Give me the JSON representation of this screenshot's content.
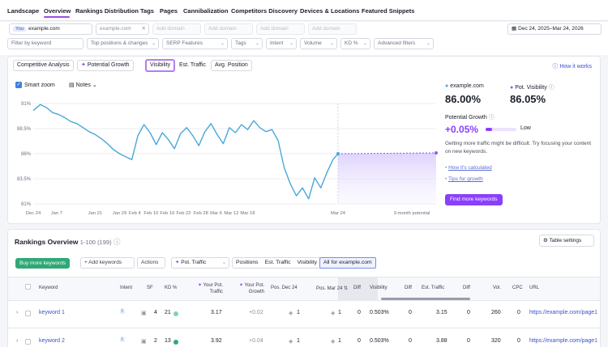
{
  "nav": {
    "items": [
      "Landscape",
      "Overview",
      "Rankings Distribution",
      "Tags",
      "Pages",
      "Cannibalization",
      "Competitors Discovery",
      "Devices & Locations",
      "Featured Snippets"
    ],
    "active": "Overview"
  },
  "domains": {
    "you_label": "You",
    "you_domain": "example.com",
    "competitor_domain": "example.com",
    "add_domain_1": "Add domain",
    "add_domain_2": "Add domain",
    "add_domain_3": "Add domain",
    "add_domain_4": "Add domain",
    "date_range": "Dec 24, 2025–Mar 24, 2026"
  },
  "filters": {
    "keyword_placeholder": "Filter by keyword",
    "items": [
      "Top positions & changes",
      "SERP Features",
      "Tags",
      "Intent",
      "Volume",
      "KD %",
      "Advanced filters"
    ]
  },
  "chart_tabs": {
    "items": [
      "Competitive Analysis",
      "Potential Growth",
      "Visibility",
      "Est. Traffic",
      "Avg. Position"
    ],
    "selected": "Visibility",
    "how_it_works": "How it works"
  },
  "controls": {
    "smart_zoom": "Smart zoom",
    "notes": "Notes"
  },
  "chart_data": {
    "type": "line",
    "x_ticks": [
      "Dec 24",
      "Jan 7",
      "Jan 21",
      "Jan 29",
      "Feb 4",
      "Feb 10",
      "Feb 16",
      "Feb 22",
      "Feb 28",
      "Mar 6",
      "Mar 12",
      "Mar 18",
      "Mar 24",
      "3-month potential"
    ],
    "y_ticks": [
      "91%",
      "88.5%",
      "86%",
      "83.5%",
      "81%"
    ],
    "ylim": [
      81,
      91
    ],
    "series": [
      {
        "name": "example.com",
        "color": "#4aa7d8",
        "x": [
          0,
          0.07,
          0.13,
          0.19,
          0.25,
          0.31,
          0.37,
          0.43,
          0.49,
          0.55,
          0.61,
          0.67,
          0.73,
          0.79,
          0.85,
          0.91,
          0.97,
          1.03,
          1.09,
          1.15,
          1.21,
          1.27,
          1.33,
          1.39,
          1.45,
          1.51,
          1.57,
          1.63,
          1.69,
          1.75,
          1.81,
          1.87,
          1.93,
          1.99,
          2.05,
          2.11,
          2.17,
          2.23,
          2.29,
          2.35,
          2.41,
          2.47,
          2.53,
          2.59,
          2.65,
          2.71,
          2.77,
          2.83,
          2.89,
          2.95,
          3.0
        ],
        "y": [
          90.3,
          90.9,
          90.6,
          90.1,
          89.9,
          89.6,
          89.2,
          89.0,
          88.6,
          88.2,
          87.9,
          87.5,
          87.0,
          86.4,
          86.0,
          85.7,
          85.4,
          87.8,
          88.9,
          88.1,
          86.9,
          88.1,
          87.4,
          86.5,
          88.0,
          88.6,
          87.8,
          86.8,
          88.2,
          89.0,
          87.9,
          87.0,
          88.6,
          88.1,
          88.9,
          88.4,
          89.3,
          88.6,
          88.2,
          88.4,
          87.3,
          84.6,
          83.0,
          81.8,
          82.6,
          81.5,
          83.6,
          82.6,
          84.1,
          85.4,
          86.0
        ]
      }
    ],
    "potential": {
      "from": 86.0,
      "to": 86.0,
      "color": "#8a5cf6"
    }
  },
  "stats": {
    "domain_label": "example.com",
    "domain_value": "86.00%",
    "pot_label": "Pot. Visibility",
    "pot_value": "86.05%",
    "growth_label": "Potential Growth",
    "growth_value": "+0.05%",
    "growth_level": "Low",
    "growth_fill": 0.2,
    "advice": "Getting more traffic might be difficult. Try focusing your content on new keywords.",
    "link1": "How it's calculated",
    "link2": "Tips for growth",
    "cta": "Find more keywords"
  },
  "rankings": {
    "title": "Rankings Overview",
    "range": "1-100 (199)",
    "table_settings": "Table settings",
    "buy_btn": "Buy more keywords",
    "add_btn": "+ Add keywords",
    "actions_btn": "Actions",
    "pot_traffic_btn": "Pot. Traffic",
    "metric_tabs": [
      "Positions",
      "Est. Traffic",
      "Visibility",
      "All for example.com"
    ],
    "columns": [
      "Keyword",
      "Intent",
      "SF",
      "KD %",
      "Your Pot. Traffic",
      "Your Pot. Growth",
      "Pos. Dec 24",
      "Pos. Mar 24",
      "Diff",
      "Visibility",
      "Diff",
      "Est. Traffic",
      "Diff",
      "Vol.",
      "CPC",
      "URL"
    ],
    "rows": [
      {
        "keyword": "keyword 1",
        "intent": "I",
        "sf": "4",
        "kd": "21",
        "kd_color": "#7fd4a8",
        "pot_traffic": "3.17",
        "pot_growth": "+0.02",
        "pos_dec": "1",
        "pos_mar": "1",
        "diff1": "0",
        "visibility": "0.503%",
        "diff2": "0",
        "est_traffic": "3.15",
        "diff3": "0",
        "vol": "260",
        "cpc": "0",
        "url": "https://example.com/page1"
      },
      {
        "keyword": "keyword 2",
        "intent": "I",
        "sf": "2",
        "kd": "13",
        "kd_color": "#2fa875",
        "pot_traffic": "3.92",
        "pot_growth": "+0.04",
        "pos_dec": "1",
        "pos_mar": "1",
        "diff1": "0",
        "visibility": "0.503%",
        "diff2": "0",
        "est_traffic": "3.88",
        "diff3": "0",
        "vol": "320",
        "cpc": "0",
        "url": "https://example.com/page1"
      }
    ]
  }
}
